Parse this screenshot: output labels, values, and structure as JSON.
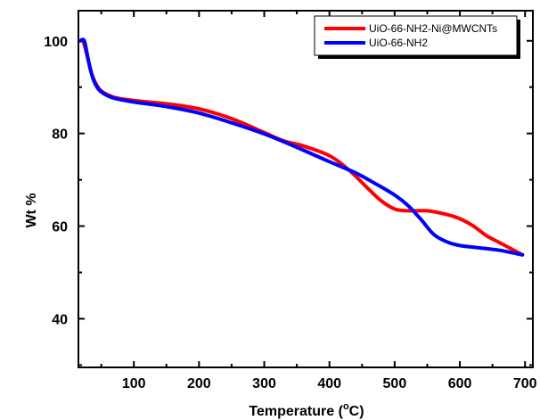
{
  "chart_data": {
    "type": "line",
    "title": "",
    "xlabel": "Temperature (",
    "xlabel_sup": "o",
    "xlabel_end": "C)",
    "ylabel": "Wt %",
    "xlim": [
      15,
      712
    ],
    "ylim": [
      29.5,
      106.5
    ],
    "xticks": [
      100,
      200,
      300,
      400,
      500,
      600,
      700
    ],
    "xtick_labels": [
      "100",
      "200",
      "300",
      "400",
      "500",
      "600",
      "700"
    ],
    "yticks": [
      40,
      60,
      80,
      100
    ],
    "ytick_labels": [
      "40",
      "60",
      "80",
      "100"
    ],
    "grid": false,
    "legend_position": "top-right",
    "series": [
      {
        "name": "UiO-66-NH2-Ni@MWCNTs",
        "color": "#ff0000",
        "x": [
          18,
          22,
          28,
          35,
          45,
          55,
          70,
          100,
          150,
          200,
          250,
          300,
          330,
          360,
          400,
          430,
          460,
          480,
          500,
          520,
          550,
          580,
          600,
          620,
          640,
          660,
          680,
          696
        ],
        "y": [
          100,
          100,
          97,
          93,
          90,
          88.7,
          87.8,
          87.1,
          86.4,
          85.3,
          83.2,
          80.2,
          78.4,
          77.3,
          75.2,
          72.1,
          68,
          65.4,
          63.7,
          63.3,
          63.3,
          62.5,
          61.6,
          60.1,
          58,
          56.5,
          55,
          53.8
        ]
      },
      {
        "name": "UiO-66-NH2",
        "color": "#0000ff",
        "x": [
          18,
          24,
          30,
          37,
          45,
          55,
          70,
          100,
          150,
          200,
          250,
          300,
          350,
          400,
          440,
          470,
          500,
          520,
          540,
          560,
          580,
          600,
          630,
          660,
          696
        ],
        "y": [
          100,
          100,
          96,
          92,
          89.7,
          88.5,
          87.6,
          86.8,
          85.8,
          84.4,
          82.3,
          79.9,
          77,
          73.9,
          71.5,
          69.2,
          66.7,
          64.5,
          61.5,
          58.2,
          56.6,
          55.8,
          55.3,
          54.8,
          53.8
        ]
      }
    ]
  }
}
